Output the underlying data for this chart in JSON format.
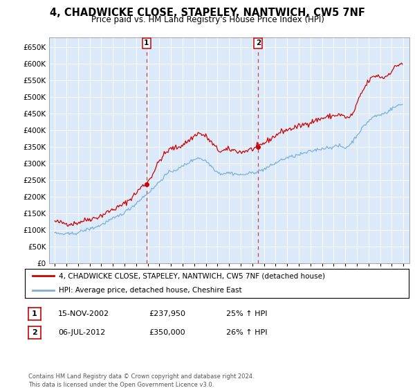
{
  "title": "4, CHADWICKE CLOSE, STAPELEY, NANTWICH, CW5 7NF",
  "subtitle": "Price paid vs. HM Land Registry's House Price Index (HPI)",
  "bg_color": "#dce9f8",
  "red_color": "#cc0000",
  "blue_color": "#7ab0d8",
  "sale1_x": 2002.88,
  "sale1_price": 237950,
  "sale2_x": 2012.51,
  "sale2_price": 350000,
  "legend_line1": "4, CHADWICKE CLOSE, STAPELEY, NANTWICH, CW5 7NF (detached house)",
  "legend_line2": "HPI: Average price, detached house, Cheshire East",
  "sale1_date": "15-NOV-2002",
  "sale1_amount": "£237,950",
  "sale1_hpi": "25% ↑ HPI",
  "sale2_date": "06-JUL-2012",
  "sale2_amount": "£350,000",
  "sale2_hpi": "26% ↑ HPI",
  "footer": "Contains HM Land Registry data © Crown copyright and database right 2024.\nThis data is licensed under the Open Government Licence v3.0.",
  "ylim": [
    0,
    680000
  ],
  "xlim": [
    1994.5,
    2025.5
  ],
  "ytick_vals": [
    0,
    50000,
    100000,
    150000,
    200000,
    250000,
    300000,
    350000,
    400000,
    450000,
    500000,
    550000,
    600000,
    650000
  ],
  "ytick_labels": [
    "£0",
    "£50K",
    "£100K",
    "£150K",
    "£200K",
    "£250K",
    "£300K",
    "£350K",
    "£400K",
    "£450K",
    "£500K",
    "£550K",
    "£600K",
    "£650K"
  ]
}
